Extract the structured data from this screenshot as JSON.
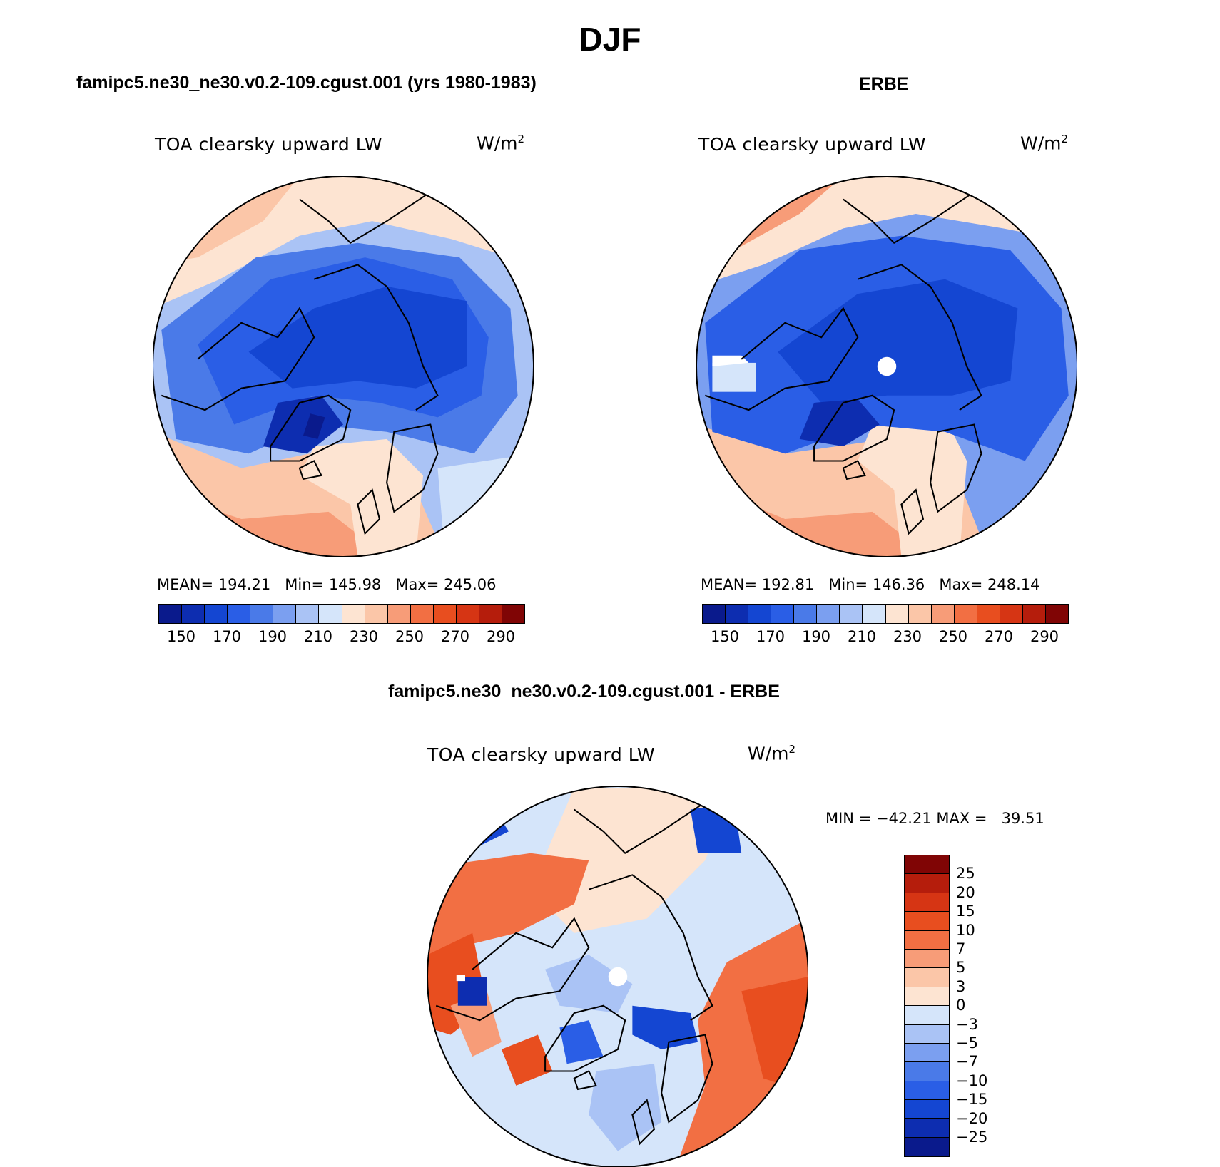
{
  "figure": {
    "title": "DJF"
  },
  "panels": [
    {
      "run_title": "famipc5.ne30_ne30.v0.2-109.cgust.001 (yrs 1980-1983)",
      "variable": "TOA clearsky upward LW",
      "units": "W/m",
      "units_exp": "2",
      "mean_label": "MEAN=",
      "mean": "194.21",
      "min_label": "Min=",
      "min": "145.98",
      "max_label": "Max=",
      "max": "245.06",
      "colorbar_ticks": [
        "150",
        "170",
        "190",
        "210",
        "230",
        "250",
        "270",
        "290"
      ]
    },
    {
      "run_title": "ERBE",
      "variable": "TOA clearsky upward LW",
      "units": "W/m",
      "units_exp": "2",
      "mean_label": "MEAN=",
      "mean": "192.81",
      "min_label": "Min=",
      "min": "146.36",
      "max_label": "Max=",
      "max": "248.14",
      "colorbar_ticks": [
        "150",
        "170",
        "190",
        "210",
        "230",
        "250",
        "270",
        "290"
      ]
    },
    {
      "run_title": "famipc5.ne30_ne30.v0.2-109.cgust.001 - ERBE",
      "variable": "TOA clearsky upward LW",
      "units": "W/m",
      "units_exp": "2",
      "min_label": "MIN =",
      "min": "−42.21",
      "max_label": "MAX =",
      "max": "39.51",
      "colorbar_ticks": [
        "25",
        "20",
        "15",
        "10",
        "7",
        "5",
        "3",
        "0",
        "−3",
        "−5",
        "−7",
        "−10",
        "−15",
        "−20",
        "−25"
      ]
    }
  ],
  "colors": {
    "abs_scale": [
      "#0a1a8c",
      "#0d2db0",
      "#1446d2",
      "#2a5ee6",
      "#4a7ae8",
      "#7b9ff0",
      "#aac3f5",
      "#d5e5fa",
      "#fde4d2",
      "#fbc6a8",
      "#f79c78",
      "#f26f43",
      "#e84e1f",
      "#d63514",
      "#b51d0c",
      "#800505"
    ],
    "diff_scale": [
      "#800505",
      "#b51d0c",
      "#d63514",
      "#e84e1f",
      "#f26f43",
      "#f79c78",
      "#fbc6a8",
      "#fde4d2",
      "#d5e5fa",
      "#aac3f5",
      "#7b9ff0",
      "#4a7ae8",
      "#2a5ee6",
      "#1446d2",
      "#0d2db0",
      "#0a1a8c"
    ],
    "missing": "#ffffff"
  },
  "icons": {
    "map_projection": "north-polar-stereographic",
    "coastline": "coastline-contour"
  }
}
